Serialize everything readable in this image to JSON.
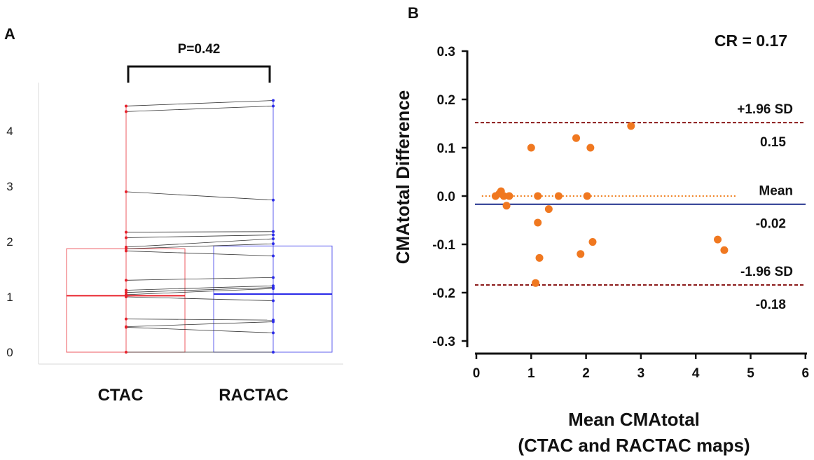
{
  "panelA": {
    "letter": "A",
    "pvalue": "P=0.42",
    "chart_data": {
      "type": "box-paired",
      "categories": [
        "CTAC",
        "RACTAC"
      ],
      "y_ticks": [
        "0",
        "1",
        "2",
        "3",
        "4"
      ],
      "ylim": [
        0,
        4.6
      ],
      "pvalue": "P=0.42",
      "boxes": [
        {
          "name": "CTAC",
          "min": 0.0,
          "q1": 0.0,
          "median": 1.02,
          "q3": 1.87,
          "max": 4.45,
          "color": "#e8202a"
        },
        {
          "name": "RACTAC",
          "min": 0.0,
          "q1": 0.0,
          "median": 1.05,
          "q3": 1.92,
          "max": 4.55,
          "color": "#2a2ae8"
        }
      ],
      "pairs": [
        [
          4.45,
          4.55
        ],
        [
          4.35,
          4.45
        ],
        [
          2.9,
          2.75
        ],
        [
          2.17,
          2.18
        ],
        [
          2.07,
          2.12
        ],
        [
          1.9,
          2.05
        ],
        [
          1.87,
          1.96
        ],
        [
          1.83,
          1.74
        ],
        [
          1.3,
          1.35
        ],
        [
          1.12,
          1.2
        ],
        [
          1.08,
          1.17
        ],
        [
          1.04,
          1.15
        ],
        [
          1.0,
          0.93
        ],
        [
          0.6,
          0.58
        ],
        [
          0.46,
          0.55
        ],
        [
          0.45,
          0.35
        ],
        [
          0.0,
          0.0
        ]
      ]
    }
  },
  "panelB": {
    "letter": "B",
    "cr_label": "CR = 0.17",
    "chart_data": {
      "type": "scatter",
      "title": "CR = 0.17",
      "xlabel_line1": "Mean CMAtotal",
      "xlabel_line2": "(CTAC and RACTAC maps)",
      "ylabel": "CMAtotal Difference",
      "xlim": [
        0,
        6
      ],
      "ylim": [
        -0.3,
        0.3
      ],
      "x_ticks": [
        "0",
        "1",
        "2",
        "3",
        "4",
        "5",
        "6"
      ],
      "y_ticks": [
        "0.3",
        "0.2",
        "0.1",
        "0.0",
        "-0.1",
        "-0.2",
        "-0.3"
      ],
      "reference_lines": [
        {
          "label": "+1.96 SD",
          "value_label": "0.15",
          "value": 0.152,
          "style": "dashed",
          "color": "#8b1a1a"
        },
        {
          "label": "Mean",
          "value_label": "-0.02",
          "value": -0.017,
          "style": "solid",
          "color": "#1f2f8c"
        },
        {
          "label": "-1.96 SD",
          "value_label": "-0.18",
          "value": -0.184,
          "style": "dashed",
          "color": "#8b1a1a"
        }
      ],
      "zero_line": {
        "value": 0.0,
        "color": "#f08020",
        "style": "dotted"
      },
      "point_color": "#f07820",
      "points": [
        [
          0.35,
          0.0
        ],
        [
          0.42,
          0.005
        ],
        [
          0.45,
          0.01
        ],
        [
          0.5,
          0.0
        ],
        [
          0.55,
          -0.02
        ],
        [
          0.6,
          0.0
        ],
        [
          1.0,
          0.1
        ],
        [
          1.08,
          -0.18
        ],
        [
          1.12,
          -0.055
        ],
        [
          1.12,
          0.0
        ],
        [
          1.15,
          -0.128
        ],
        [
          1.32,
          -0.027
        ],
        [
          1.5,
          0.0
        ],
        [
          1.82,
          0.12
        ],
        [
          1.9,
          -0.12
        ],
        [
          2.02,
          0.0
        ],
        [
          2.08,
          0.1
        ],
        [
          2.12,
          -0.095
        ],
        [
          2.82,
          0.145
        ],
        [
          4.4,
          -0.09
        ],
        [
          4.52,
          -0.112
        ]
      ]
    }
  }
}
